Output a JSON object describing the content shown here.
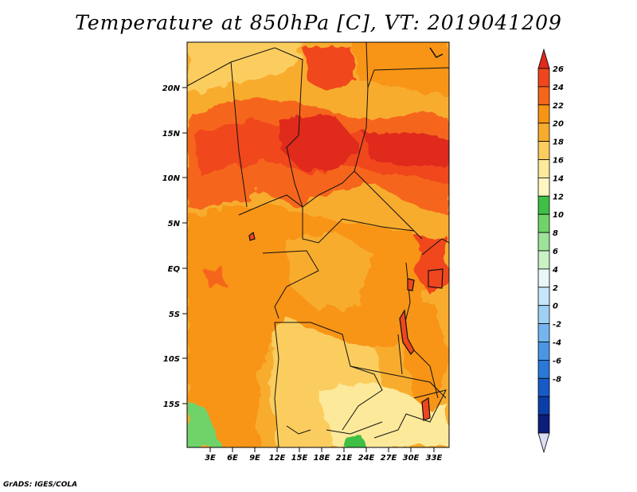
{
  "title": "Temperature at 850hPa [C], VT: 2019041209",
  "credit": "GrADS: IGES/COLA",
  "map": {
    "lat_ticks": [
      "20N",
      "15N",
      "10N",
      "5N",
      "EQ",
      "5S",
      "10S",
      "15S"
    ],
    "lon_ticks": [
      "3E",
      "6E",
      "9E",
      "12E",
      "15E",
      "18E",
      "21E",
      "24E",
      "27E",
      "30E",
      "33E"
    ]
  },
  "colorbar": {
    "levels": [
      "26",
      "24",
      "22",
      "20",
      "18",
      "16",
      "14",
      "12",
      "10",
      "8",
      "6",
      "4",
      "2",
      "0",
      "-2",
      "-4",
      "-6",
      "-8"
    ],
    "colors": [
      "#e02a1c",
      "#f0461e",
      "#f5661a",
      "#f89414",
      "#f8ac2e",
      "#fbcd5e",
      "#fde99a",
      "#fff7c2",
      "#3fbf45",
      "#6fd36a",
      "#9ee39a",
      "#c9f1c4",
      "#e8f7f7",
      "#c5e6fb",
      "#9fd1f7",
      "#74b5ee",
      "#4a96e4",
      "#2a78d8",
      "#175bc6",
      "#0c3eaa",
      "#0b1f7a",
      "#dcdcf5"
    ]
  },
  "colors": {
    "hot": "#e02a1c",
    "deep_orange": "#f0461e",
    "orange": "#f89414",
    "light_orange": "#f8ac2e",
    "yellow": "#fbcd5e",
    "green": "#6fd36a"
  }
}
